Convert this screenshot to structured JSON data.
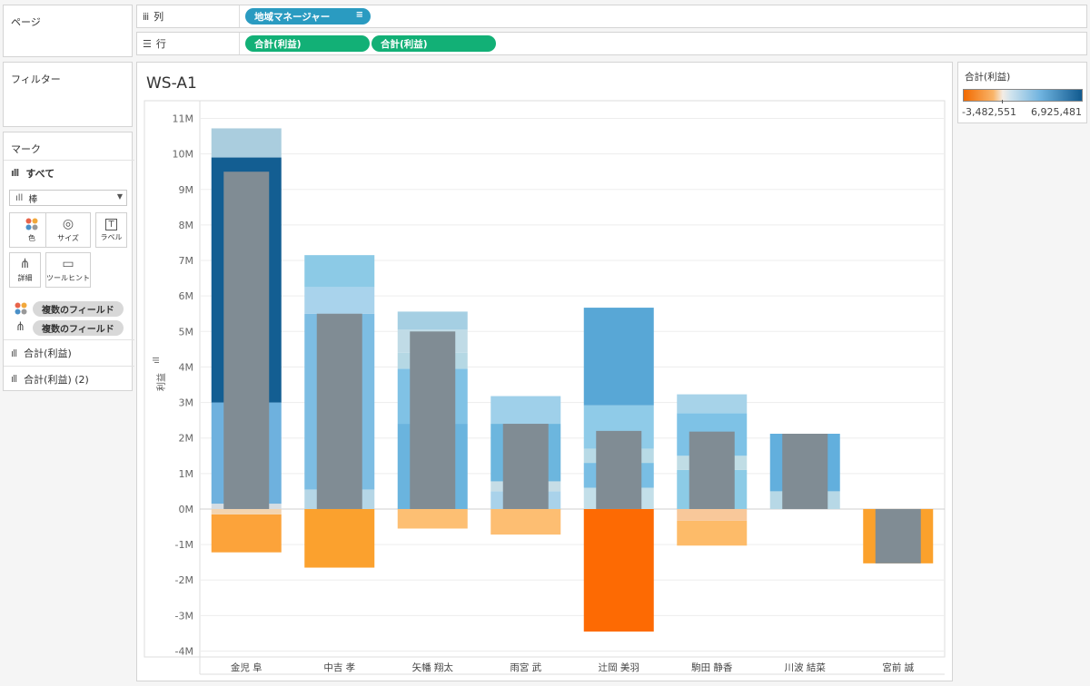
{
  "pages_panel": {
    "title": "ページ"
  },
  "columns_shelf": {
    "icon": "columns-icon",
    "label": "列",
    "pill": "地域マネージャー"
  },
  "rows_shelf": {
    "icon": "rows-icon",
    "label": "行",
    "pills": [
      "合計(利益)",
      "合計(利益)"
    ]
  },
  "filters_panel": {
    "title": "フィルター"
  },
  "marks_panel": {
    "title": "マーク",
    "all_label": "すべて",
    "mark_type": "棒",
    "buttons": [
      {
        "label": "色",
        "icon": "color-icon"
      },
      {
        "label": "サイズ",
        "icon": "size-icon"
      },
      {
        "label": "ラベル",
        "icon": "label-icon"
      },
      {
        "label": "詳細",
        "icon": "detail-icon"
      },
      {
        "label": "ツールヒント",
        "icon": "tooltip-icon"
      }
    ],
    "fields": [
      "複数のフィールド",
      "複数のフィールド"
    ],
    "measure_cards": [
      "合計(利益)",
      "合計(利益) (2)"
    ]
  },
  "legend": {
    "title": "合計(利益)",
    "min_label": "-3,482,551",
    "max_label": "6,925,481",
    "min_color": "#f26a00",
    "max_color": "#115a8f"
  },
  "worksheet": {
    "title": "WS-A1"
  },
  "chart_data": {
    "type": "bar",
    "title": "WS-A1",
    "xlabel": "",
    "ylabel": "利益",
    "ylim": [
      -4000000,
      11000000
    ],
    "y_ticks": [
      "11M",
      "10M",
      "9M",
      "8M",
      "7M",
      "6M",
      "5M",
      "4M",
      "3M",
      "2M",
      "1M",
      "0M",
      "-1M",
      "-2M",
      "-3M",
      "-4M"
    ],
    "grid": true,
    "categories": [
      "金児 阜",
      "中吉 孝",
      "矢幡 翔太",
      "雨宮 武",
      "辻岡 美羽",
      "駒田 静香",
      "川波 結菜",
      "宮前 誠"
    ],
    "series": [
      {
        "name": "合計(利益)",
        "stacked_segments": [
          [
            {
              "from": -1220000,
              "to": -150000,
              "color": "#fca33a"
            },
            {
              "from": -150000,
              "to": 0,
              "color": "#f3d4b0"
            },
            {
              "from": 0,
              "to": 150000,
              "color": "#d5dde3"
            },
            {
              "from": 150000,
              "to": 3000000,
              "color": "#6eb1de"
            },
            {
              "from": 3000000,
              "to": 9900000,
              "color": "#135e92"
            },
            {
              "from": 9900000,
              "to": 10720000,
              "color": "#aacdde"
            }
          ],
          [
            {
              "from": -1650000,
              "to": 0,
              "color": "#fba12e"
            },
            {
              "from": 0,
              "to": 550000,
              "color": "#b5d6e6"
            },
            {
              "from": 550000,
              "to": 5500000,
              "color": "#7dbde3"
            },
            {
              "from": 5500000,
              "to": 6250000,
              "color": "#a9d3ec"
            },
            {
              "from": 6250000,
              "to": 7150000,
              "color": "#8ccae6"
            }
          ],
          [
            {
              "from": -550000,
              "to": 0,
              "color": "#fdbf73"
            },
            {
              "from": 0,
              "to": 2400000,
              "color": "#6ab4de"
            },
            {
              "from": 2400000,
              "to": 3950000,
              "color": "#80c2e5"
            },
            {
              "from": 3950000,
              "to": 4400000,
              "color": "#b5d8e4"
            },
            {
              "from": 4400000,
              "to": 5050000,
              "color": "#c0dbe6"
            },
            {
              "from": 5050000,
              "to": 5560000,
              "color": "#a5cfe3"
            }
          ],
          [
            {
              "from": -720000,
              "to": 0,
              "color": "#fdbe72"
            },
            {
              "from": 0,
              "to": 500000,
              "color": "#a9d2ea"
            },
            {
              "from": 500000,
              "to": 780000,
              "color": "#c6dde6"
            },
            {
              "from": 780000,
              "to": 2400000,
              "color": "#6cb6de"
            },
            {
              "from": 2400000,
              "to": 3180000,
              "color": "#9fd0ea"
            }
          ],
          [
            {
              "from": -3450000,
              "to": 0,
              "color": "#fd6a03"
            },
            {
              "from": 0,
              "to": 600000,
              "color": "#c3dfe9"
            },
            {
              "from": 600000,
              "to": 1300000,
              "color": "#79bee4"
            },
            {
              "from": 1300000,
              "to": 1700000,
              "color": "#b8dae6"
            },
            {
              "from": 1700000,
              "to": 2920000,
              "color": "#8fcbe8"
            },
            {
              "from": 2920000,
              "to": 5670000,
              "color": "#58a7d6"
            }
          ],
          [
            {
              "from": -1030000,
              "to": -330000,
              "color": "#fdbb69"
            },
            {
              "from": -330000,
              "to": 0,
              "color": "#f8c89a"
            },
            {
              "from": 0,
              "to": 1100000,
              "color": "#8ccbe6"
            },
            {
              "from": 1100000,
              "to": 1500000,
              "color": "#c0dde5"
            },
            {
              "from": 1500000,
              "to": 2700000,
              "color": "#7ec2e6"
            },
            {
              "from": 2700000,
              "to": 3230000,
              "color": "#a7d3e9"
            }
          ],
          [
            {
              "from": 0,
              "to": 500000,
              "color": "#b7d8e6"
            },
            {
              "from": 500000,
              "to": 2120000,
              "color": "#62afdd"
            }
          ],
          [
            {
              "from": -1530000,
              "to": 0,
              "color": "#fba12c"
            }
          ]
        ]
      },
      {
        "name": "合計(利益) (2)",
        "color": "#808c94",
        "values": [
          9500000,
          5500000,
          5000000,
          2400000,
          2200000,
          2180000,
          2120000,
          -1530000
        ]
      }
    ]
  }
}
